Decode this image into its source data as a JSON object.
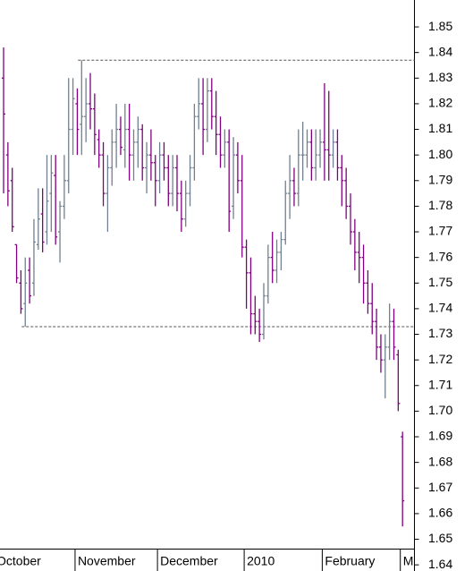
{
  "chart_data": {
    "type": "ohlc",
    "up_color": "#708090",
    "down_color": "#800080",
    "categories": [
      "October",
      null,
      null,
      null,
      null,
      null,
      null,
      null,
      null,
      null,
      null,
      null,
      null,
      null,
      null,
      null,
      null,
      "November",
      null,
      null,
      null,
      null,
      null,
      null,
      null,
      null,
      null,
      null,
      null,
      null,
      null,
      null,
      null,
      null,
      null,
      null,
      "December",
      null,
      null,
      null,
      null,
      null,
      null,
      null,
      null,
      null,
      null,
      null,
      null,
      null,
      null,
      null,
      null,
      null,
      null,
      null,
      "2010",
      null,
      null,
      null,
      null,
      null,
      null,
      null,
      null,
      null,
      null,
      null,
      null,
      null,
      null,
      null,
      null,
      null,
      "February",
      null,
      null,
      null,
      null,
      null,
      null,
      null,
      null,
      null,
      null,
      null,
      null,
      null,
      null,
      null,
      null,
      null,
      "M"
    ],
    "open": [
      1.83,
      1.8,
      1.79,
      1.765,
      1.75,
      1.742,
      1.755,
      1.75,
      1.765,
      1.777,
      1.77,
      1.785,
      1.792,
      1.77,
      1.78,
      1.79,
      1.81,
      1.82,
      1.812,
      1.815,
      1.82,
      1.818,
      1.806,
      1.8,
      1.785,
      1.795,
      1.805,
      1.81,
      1.802,
      1.81,
      1.8,
      1.805,
      1.81,
      1.795,
      1.8,
      1.797,
      1.79,
      1.8,
      1.795,
      1.785,
      1.795,
      1.785,
      1.775,
      1.785,
      1.795,
      1.815,
      1.82,
      1.81,
      1.825,
      1.815,
      1.808,
      1.8,
      1.805,
      1.78,
      1.8,
      1.79,
      1.764,
      1.754,
      1.738,
      1.735,
      1.73,
      1.745,
      1.76,
      1.755,
      1.762,
      1.767,
      1.785,
      1.79,
      1.785,
      1.8,
      1.8,
      1.805,
      1.795,
      1.8,
      1.805,
      1.802,
      1.8,
      1.805,
      1.795,
      1.79,
      1.78,
      1.77,
      1.762,
      1.76,
      1.75,
      1.742,
      1.735,
      1.725,
      1.72,
      1.725,
      1.735,
      1.722,
      1.69
    ],
    "high": [
      1.842,
      1.805,
      1.795,
      1.765,
      1.755,
      1.76,
      1.76,
      1.775,
      1.787,
      1.787,
      1.8,
      1.8,
      1.8,
      1.782,
      1.8,
      1.83,
      1.83,
      1.826,
      1.837,
      1.83,
      1.832,
      1.824,
      1.81,
      1.805,
      1.8,
      1.81,
      1.82,
      1.815,
      1.82,
      1.82,
      1.81,
      1.815,
      1.812,
      1.805,
      1.81,
      1.8,
      1.805,
      1.805,
      1.8,
      1.8,
      1.8,
      1.79,
      1.79,
      1.8,
      1.82,
      1.83,
      1.83,
      1.83,
      1.83,
      1.825,
      1.815,
      1.81,
      1.81,
      1.807,
      1.805,
      1.8,
      1.767,
      1.76,
      1.745,
      1.74,
      1.75,
      1.765,
      1.77,
      1.767,
      1.77,
      1.79,
      1.8,
      1.795,
      1.81,
      1.813,
      1.81,
      1.81,
      1.81,
      1.81,
      1.828,
      1.825,
      1.81,
      1.81,
      1.8,
      1.795,
      1.785,
      1.775,
      1.77,
      1.765,
      1.755,
      1.75,
      1.74,
      1.73,
      1.73,
      1.742,
      1.74,
      1.724,
      1.692
    ],
    "low": [
      1.785,
      1.78,
      1.77,
      1.75,
      1.738,
      1.733,
      1.742,
      1.745,
      1.763,
      1.762,
      1.765,
      1.77,
      1.765,
      1.758,
      1.775,
      1.785,
      1.8,
      1.8,
      1.8,
      1.805,
      1.81,
      1.8,
      1.795,
      1.78,
      1.77,
      1.788,
      1.795,
      1.8,
      1.795,
      1.79,
      1.79,
      1.795,
      1.79,
      1.785,
      1.79,
      1.78,
      1.785,
      1.79,
      1.78,
      1.78,
      1.778,
      1.77,
      1.772,
      1.78,
      1.79,
      1.81,
      1.8,
      1.805,
      1.81,
      1.8,
      1.795,
      1.795,
      1.77,
      1.775,
      1.785,
      1.76,
      1.74,
      1.73,
      1.73,
      1.727,
      1.728,
      1.742,
      1.75,
      1.75,
      1.755,
      1.765,
      1.775,
      1.78,
      1.78,
      1.79,
      1.795,
      1.79,
      1.79,
      1.795,
      1.79,
      1.79,
      1.795,
      1.79,
      1.78,
      1.775,
      1.765,
      1.755,
      1.75,
      1.742,
      1.738,
      1.73,
      1.72,
      1.715,
      1.705,
      1.72,
      1.72,
      1.7,
      1.655
    ],
    "close": [
      1.816,
      1.786,
      1.772,
      1.752,
      1.74,
      1.75,
      1.745,
      1.766,
      1.775,
      1.766,
      1.782,
      1.793,
      1.768,
      1.78,
      1.79,
      1.81,
      1.822,
      1.81,
      1.815,
      1.82,
      1.818,
      1.808,
      1.8,
      1.785,
      1.795,
      1.805,
      1.81,
      1.803,
      1.81,
      1.8,
      1.805,
      1.81,
      1.795,
      1.8,
      1.797,
      1.79,
      1.8,
      1.795,
      1.785,
      1.795,
      1.785,
      1.775,
      1.785,
      1.795,
      1.815,
      1.82,
      1.81,
      1.825,
      1.815,
      1.808,
      1.8,
      1.805,
      1.778,
      1.8,
      1.79,
      1.764,
      1.754,
      1.738,
      1.735,
      1.73,
      1.745,
      1.76,
      1.755,
      1.762,
      1.767,
      1.785,
      1.79,
      1.785,
      1.8,
      1.8,
      1.805,
      1.795,
      1.8,
      1.805,
      1.802,
      1.8,
      1.805,
      1.795,
      1.79,
      1.78,
      1.77,
      1.762,
      1.76,
      1.75,
      1.742,
      1.735,
      1.725,
      1.72,
      1.725,
      1.735,
      1.725,
      1.703,
      1.665
    ],
    "reference_lines": [
      1.837,
      1.733
    ],
    "ylim": [
      1.6376,
      1.8605
    ],
    "yticks": [
      1.64,
      1.65,
      1.66,
      1.67,
      1.68,
      1.69,
      {
        "value": 1.7,
        "label": "1.70"
      },
      1.71,
      1.72,
      1.73,
      1.74,
      1.75,
      1.76,
      1.77,
      1.78,
      1.79,
      {
        "value": 1.8,
        "label": "1.80"
      },
      1.81,
      1.82,
      1.83,
      1.84,
      1.85
    ]
  }
}
